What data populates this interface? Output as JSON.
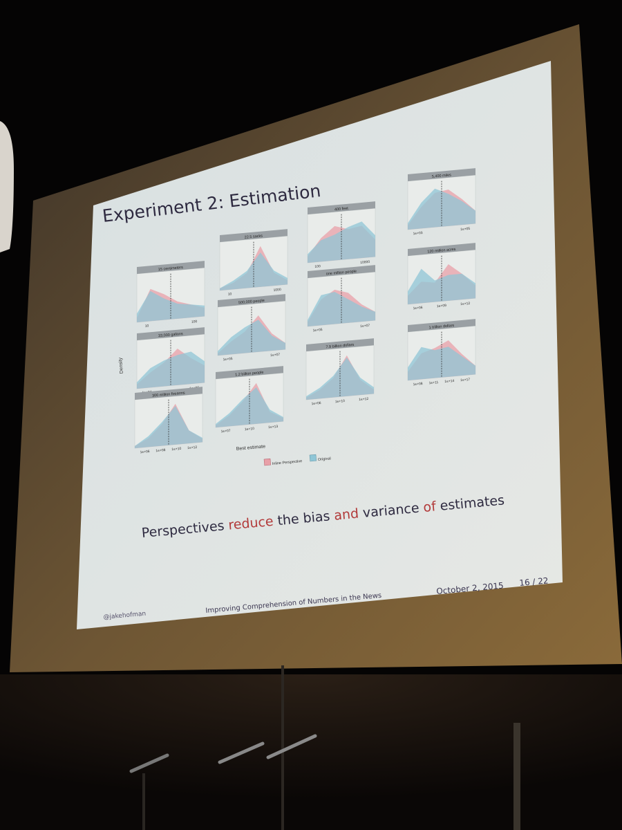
{
  "slide": {
    "title": "Experiment 2: Estimation",
    "caption_parts": [
      "Perspectives ",
      "reduce",
      " the bias ",
      "and",
      " variance ",
      "of",
      " estimates"
    ],
    "footer_left": "@jakehofman",
    "footer_center": "Improving Comprehension of Numbers in the News",
    "footer_date": "October 2, 2015",
    "footer_page": "16 / 22"
  },
  "figure": {
    "y_axis_label": "Density",
    "x_axis_label": "Best estimate",
    "legend": [
      "Inline Perspective",
      "Original"
    ],
    "panels": [
      {
        "title": "15 centimeters",
        "ticks": [
          "10",
          "100"
        ]
      },
      {
        "title": "22.5 sacks",
        "ticks": [
          "10",
          "1000"
        ]
      },
      {
        "title": "400 feet",
        "ticks": [
          "100",
          "10000"
        ]
      },
      {
        "title": "5,400 miles",
        "ticks": [
          "1e+03",
          "1e+05"
        ]
      },
      {
        "title": "33,000 gallons",
        "ticks": [
          "1e+04",
          "1e+06"
        ]
      },
      {
        "title": "500,000 people",
        "ticks": [
          "1e+05",
          "1e+07"
        ]
      },
      {
        "title": "one million people",
        "ticks": [
          "1e+05",
          "1e+07"
        ]
      },
      {
        "title": "120 million acres",
        "ticks": [
          "1e+06",
          "1e+09",
          "1e+12"
        ]
      },
      {
        "title": "300 million firearms",
        "ticks": [
          "1e+06",
          "1e+08",
          "1e+10",
          "1e+12"
        ]
      },
      {
        "title": "1.2 billion people",
        "ticks": [
          "1e+07",
          "1e+10",
          "1e+13"
        ]
      },
      {
        "title": "7.9 billion dollars",
        "ticks": [
          "1e+06",
          "1e+10",
          "1e+12"
        ]
      },
      {
        "title": "1 trillion dollars",
        "ticks": [
          "1e+08",
          "1e+11",
          "1e+14",
          "1e+17"
        ]
      }
    ]
  },
  "colors": {
    "room": "#050404",
    "screen": "#6b5536",
    "slide": "#dde4e4",
    "inline_perspective": "#e8a0a8",
    "original": "#8fc6d6",
    "overlap": "#86afa9"
  }
}
